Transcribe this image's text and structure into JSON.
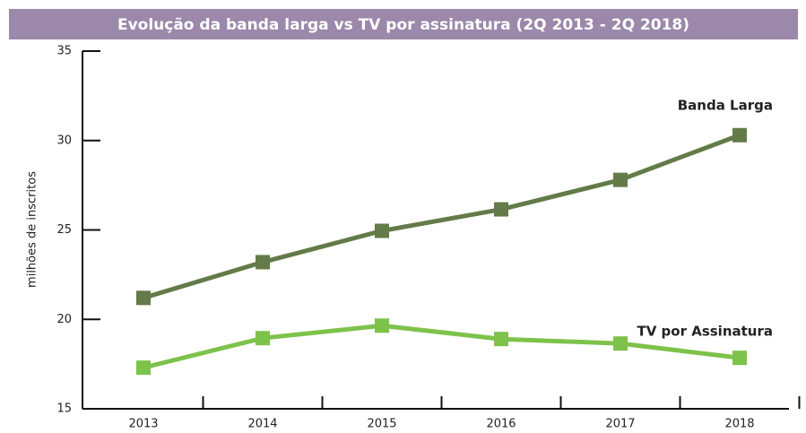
{
  "chart_data": {
    "type": "line",
    "title": "Evolução da banda larga vs TV por assinatura (2Q 2013 - 2Q 2018)",
    "ylabel": "milhões de inscritos",
    "categories": [
      "2013",
      "2014",
      "2015",
      "2016",
      "2017",
      "2018"
    ],
    "series": [
      {
        "name": "Banda Larga",
        "color": "#637b48",
        "values": [
          21.2,
          23.2,
          24.95,
          26.15,
          27.8,
          30.3
        ]
      },
      {
        "name": "TV por Assinatura",
        "color": "#7dc24b",
        "values": [
          17.3,
          18.95,
          19.65,
          18.9,
          18.65,
          17.85
        ]
      }
    ],
    "ylim": [
      15,
      35
    ],
    "yticks": [
      15,
      20,
      25,
      30,
      35
    ]
  }
}
